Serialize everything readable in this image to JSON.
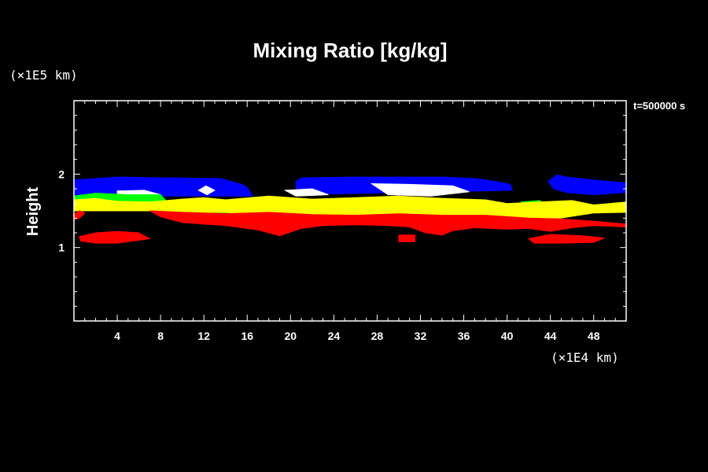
{
  "chart_data": {
    "type": "area",
    "title": "Mixing Ratio [kg/kg]",
    "ylabel": "Height",
    "xlabel": "",
    "x_unit": "(×1E4 km)",
    "y_unit": "(×1E5 km)",
    "time_label": "t=500000 s",
    "xlim": [
      0,
      51
    ],
    "ylim": [
      0,
      3
    ],
    "x_ticks": [
      4,
      8,
      12,
      16,
      20,
      24,
      28,
      32,
      36,
      40,
      44,
      48
    ],
    "x_tick_labels": [
      "4",
      "8",
      "12",
      "16",
      "20",
      "24",
      "28",
      "32",
      "36",
      "40",
      "44",
      "48"
    ],
    "y_ticks": [
      1,
      2
    ],
    "y_tick_labels": [
      "1",
      "2"
    ],
    "colors": {
      "blue": "#0000ff",
      "white": "#ffffff",
      "green": "#00ff00",
      "yellow": "#ffff00",
      "red": "#ff0000"
    },
    "series": [
      {
        "color": "blue",
        "polygons": [
          [
            [
              0,
              1.92
            ],
            [
              4,
              1.96
            ],
            [
              8,
              1.95
            ],
            [
              13.5,
              1.94
            ],
            [
              14.5,
              1.9
            ],
            [
              15.5,
              1.86
            ],
            [
              16,
              1.82
            ],
            [
              16.5,
              1.7
            ],
            [
              0,
              1.7
            ]
          ],
          [
            [
              20.5,
              1.9
            ],
            [
              21,
              1.95
            ],
            [
              26,
              1.96
            ],
            [
              34,
              1.96
            ],
            [
              37,
              1.94
            ],
            [
              39,
              1.9
            ],
            [
              40.3,
              1.86
            ],
            [
              40.5,
              1.78
            ],
            [
              20.5,
              1.72
            ]
          ],
          [
            [
              43.8,
              1.9
            ],
            [
              44.6,
              1.99
            ],
            [
              45.5,
              1.96
            ],
            [
              48,
              1.92
            ],
            [
              51,
              1.88
            ],
            [
              51,
              1.75
            ],
            [
              48,
              1.72
            ],
            [
              45.5,
              1.75
            ],
            [
              44.3,
              1.8
            ]
          ]
        ]
      },
      {
        "color": "white",
        "polygons": [
          [
            [
              4,
              1.77
            ],
            [
              6.5,
              1.78
            ],
            [
              8,
              1.72
            ],
            [
              6.5,
              1.69
            ],
            [
              4,
              1.7
            ]
          ],
          [
            [
              11.5,
              1.78
            ],
            [
              12.2,
              1.84
            ],
            [
              13,
              1.78
            ],
            [
              12.3,
              1.72
            ]
          ],
          [
            [
              19.5,
              1.78
            ],
            [
              22,
              1.8
            ],
            [
              23.5,
              1.72
            ],
            [
              20.5,
              1.7
            ]
          ],
          [
            [
              27.5,
              1.87
            ],
            [
              31,
              1.86
            ],
            [
              35,
              1.84
            ],
            [
              36.5,
              1.76
            ],
            [
              33,
              1.7
            ],
            [
              29,
              1.72
            ]
          ]
        ]
      },
      {
        "color": "green",
        "polygons": [
          [
            [
              0,
              1.7
            ],
            [
              2,
              1.74
            ],
            [
              5,
              1.72
            ],
            [
              8,
              1.72
            ],
            [
              8.5,
              1.64
            ],
            [
              6,
              1.5
            ],
            [
              3,
              1.5
            ],
            [
              1,
              1.53
            ],
            [
              0,
              1.55
            ]
          ],
          [
            [
              41.3,
              1.62
            ],
            [
              43,
              1.64
            ],
            [
              44,
              1.56
            ],
            [
              43,
              1.5
            ],
            [
              41.5,
              1.52
            ]
          ]
        ]
      },
      {
        "color": "yellow",
        "polygons": [
          [
            [
              0,
              1.65
            ],
            [
              2,
              1.67
            ],
            [
              4,
              1.63
            ],
            [
              7,
              1.62
            ],
            [
              10,
              1.66
            ],
            [
              12,
              1.68
            ],
            [
              14,
              1.65
            ],
            [
              18,
              1.7
            ],
            [
              22,
              1.66
            ],
            [
              26,
              1.68
            ],
            [
              30,
              1.7
            ],
            [
              34,
              1.67
            ],
            [
              38,
              1.65
            ],
            [
              40,
              1.6
            ],
            [
              43,
              1.62
            ],
            [
              46,
              1.64
            ],
            [
              48,
              1.58
            ],
            [
              51,
              1.62
            ],
            [
              51,
              1.48
            ],
            [
              48,
              1.47
            ],
            [
              44,
              1.38
            ],
            [
              40,
              1.42
            ],
            [
              36,
              1.44
            ],
            [
              32,
              1.45
            ],
            [
              28,
              1.42
            ],
            [
              24,
              1.44
            ],
            [
              20,
              1.43
            ],
            [
              16,
              1.47
            ],
            [
              12,
              1.48
            ],
            [
              8,
              1.5
            ],
            [
              5,
              1.5
            ],
            [
              2,
              1.5
            ],
            [
              0,
              1.5
            ]
          ]
        ]
      },
      {
        "color": "red",
        "polygons": [
          [
            [
              7,
              1.5
            ],
            [
              10,
              1.48
            ],
            [
              14,
              1.46
            ],
            [
              18,
              1.48
            ],
            [
              22,
              1.45
            ],
            [
              26,
              1.44
            ],
            [
              30,
              1.46
            ],
            [
              34,
              1.44
            ],
            [
              38,
              1.44
            ],
            [
              42,
              1.4
            ],
            [
              45,
              1.39
            ],
            [
              48,
              1.36
            ],
            [
              51,
              1.32
            ],
            [
              51,
              1.28
            ],
            [
              48,
              1.3
            ],
            [
              46,
              1.27
            ],
            [
              44,
              1.22
            ],
            [
              42,
              1.26
            ],
            [
              40,
              1.25
            ],
            [
              37,
              1.27
            ],
            [
              35,
              1.23
            ],
            [
              34,
              1.17
            ],
            [
              32.5,
              1.2
            ],
            [
              31,
              1.28
            ],
            [
              29,
              1.3
            ],
            [
              26,
              1.31
            ],
            [
              23,
              1.3
            ],
            [
              21,
              1.26
            ],
            [
              19,
              1.16
            ],
            [
              17,
              1.24
            ],
            [
              14,
              1.3
            ],
            [
              10,
              1.34
            ],
            [
              8,
              1.42
            ]
          ],
          [
            [
              0,
              1.45
            ],
            [
              0.5,
              1.5
            ],
            [
              1,
              1.47
            ],
            [
              0.5,
              1.4
            ],
            [
              0,
              1.38
            ]
          ],
          [
            [
              0.5,
              1.15
            ],
            [
              2,
              1.2
            ],
            [
              4,
              1.22
            ],
            [
              6,
              1.2
            ],
            [
              7,
              1.12
            ],
            [
              4,
              1.06
            ],
            [
              2,
              1.06
            ],
            [
              0.6,
              1.09
            ]
          ],
          [
            [
              30,
              1.17
            ],
            [
              31.5,
              1.17
            ],
            [
              31.5,
              1.08
            ],
            [
              30,
              1.08
            ]
          ],
          [
            [
              42,
              1.12
            ],
            [
              44,
              1.18
            ],
            [
              47,
              1.16
            ],
            [
              49,
              1.13
            ],
            [
              48,
              1.07
            ],
            [
              45,
              1.06
            ],
            [
              42.5,
              1.06
            ]
          ]
        ]
      }
    ]
  }
}
